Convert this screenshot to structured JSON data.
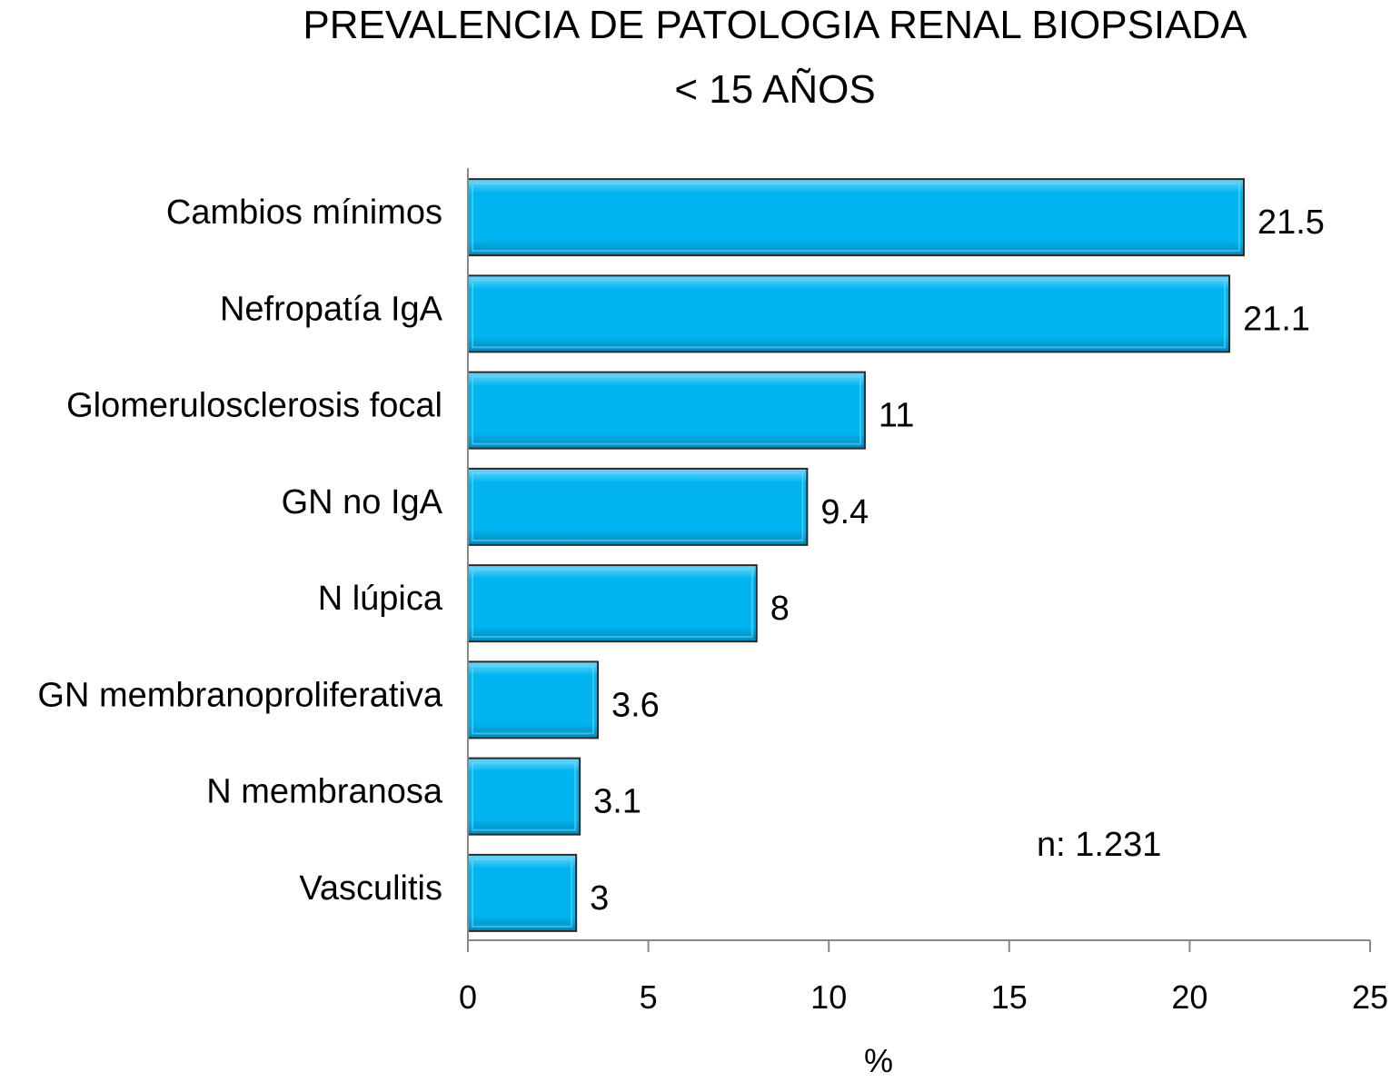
{
  "chart_data": {
    "type": "bar",
    "orientation": "horizontal",
    "title": "PREVALENCIA DE PATOLOGIA RENAL BIOPSIADA",
    "subtitle": "< 15 AÑOS",
    "xlabel": "%",
    "ylabel": "",
    "xlim": [
      0,
      25
    ],
    "xticks": [
      0,
      5,
      10,
      15,
      20,
      25
    ],
    "xtick_labels": [
      "0",
      "5",
      "10",
      "15",
      "20",
      "25"
    ],
    "grid": false,
    "legend": null,
    "annotation": "n: 1.231",
    "categories": [
      "Cambios mínimos",
      "Nefropatía IgA",
      "Glomerulosclerosis focal",
      "GN no IgA",
      "N lúpica",
      "GN membranoproliferativa",
      "N membranosa",
      "Vasculitis"
    ],
    "values": [
      21.5,
      21.1,
      11,
      9.4,
      8,
      3.6,
      3.1,
      3
    ],
    "value_labels": [
      "21.5",
      "21.1",
      "11",
      "9.4",
      "8",
      "3.6",
      "3.1",
      "3"
    ],
    "colors": {
      "bar_fill": "#00b4f0",
      "bar_highlight": "#6fd8fb",
      "bar_shadow": "#0088bb",
      "bar_edge": "#2a2a2a",
      "axis": "#888888"
    }
  }
}
